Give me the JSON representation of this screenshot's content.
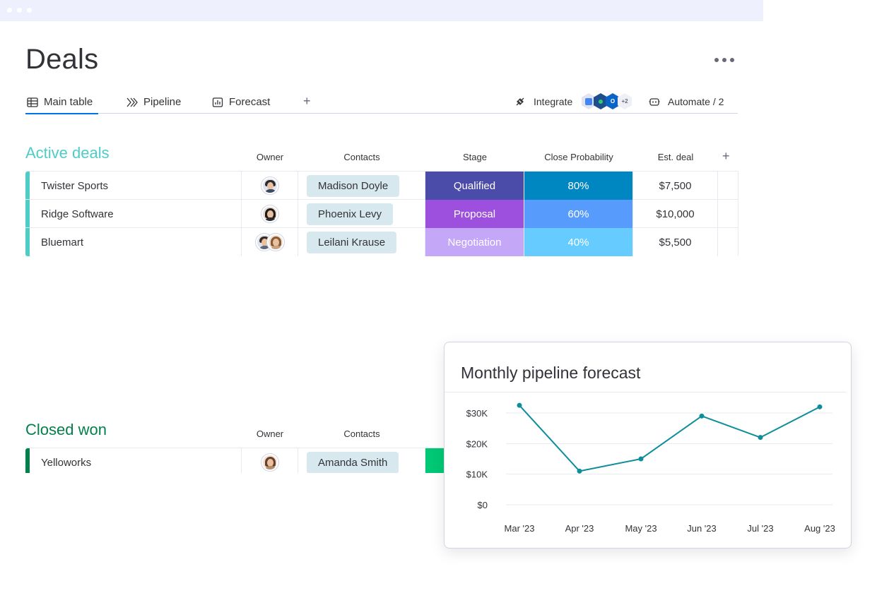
{
  "page": {
    "title": "Deals"
  },
  "tabs": [
    {
      "label": "Main table",
      "icon": "table-icon",
      "active": true
    },
    {
      "label": "Pipeline",
      "icon": "pipeline-icon",
      "active": false
    },
    {
      "label": "Forecast",
      "icon": "chart-icon",
      "active": false
    }
  ],
  "toolbar": {
    "add_tab": "+",
    "integrate_label": "Integrate",
    "integrations_more": "+2",
    "automate_label": "Automate / 2"
  },
  "active_group": {
    "title": "Active deals",
    "color": "#4eccc6",
    "columns": {
      "owner": "Owner",
      "contacts": "Contacts",
      "stage": "Stage",
      "probability": "Close Probability",
      "est": "Est. deal",
      "add": "+"
    },
    "rows": [
      {
        "name": "Twister Sports",
        "contact": "Madison Doyle",
        "stage": "Qualified",
        "stage_color": "#4b4baa",
        "probability": "80%",
        "prob_color": "#0086c0",
        "est": "$7,500"
      },
      {
        "name": "Ridge Software",
        "contact": "Phoenix Levy",
        "stage": "Proposal",
        "stage_color": "#9d50dd",
        "probability": "60%",
        "prob_color": "#579bfc",
        "est": "$10,000"
      },
      {
        "name": "Bluemart",
        "contact": "Leilani Krause",
        "stage": "Negotiation",
        "stage_color": "#c5a7f8",
        "probability": "40%",
        "prob_color": "#66ccff",
        "est": "$5,500"
      }
    ]
  },
  "closed_group": {
    "title": "Closed won",
    "color": "#037f4c",
    "columns": {
      "owner": "Owner",
      "contacts": "Contacts"
    },
    "rows": [
      {
        "name": "Yelloworks",
        "contact": "Amanda Smith",
        "stage_color": "#00c875"
      }
    ]
  },
  "chart_data": {
    "type": "line",
    "title": "Monthly pipeline forecast",
    "x": [
      "Mar '23",
      "Apr '23",
      "May '23",
      "Jun '23",
      "Jul '23",
      "Aug '23"
    ],
    "y_ticks": [
      "$30K",
      "$20K",
      "$10K",
      "$0"
    ],
    "ylim": [
      0,
      30000
    ],
    "series": [
      {
        "points": [
          {
            "x": "Mar '23",
            "y": 32500
          },
          {
            "x": "Apr '23",
            "y": 11000
          },
          {
            "x": "May '23",
            "y": 15000
          },
          {
            "x": "Jun '23",
            "y": 29000
          },
          {
            "x": "Jul '23",
            "y": 22000
          },
          {
            "x": "Aug '23",
            "y": 32000
          }
        ]
      }
    ],
    "line_color": "#0d8e9a",
    "grid": true
  }
}
